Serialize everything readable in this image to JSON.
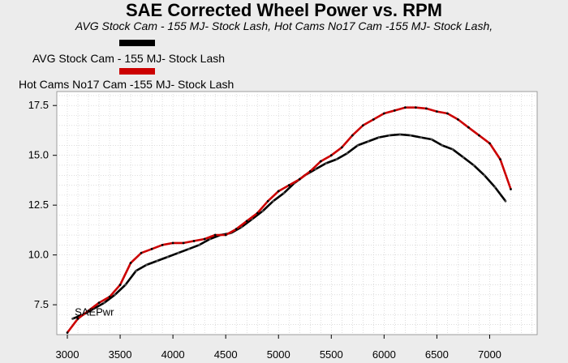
{
  "chart_data": {
    "type": "line",
    "title": "SAE Corrected Wheel Power vs. RPM",
    "subtitle": "AVG Stock Cam - 155 MJ- Stock Lash, Hot Cams No17 Cam -155 MJ- Stock Lash,",
    "annotation": "SAEPwr",
    "xlim": [
      2900,
      7450
    ],
    "ylim": [
      6.0,
      18.2
    ],
    "xticks": [
      3000,
      3500,
      4000,
      4500,
      5000,
      5500,
      6000,
      6500,
      7000
    ],
    "yticks": [
      7.5,
      10.0,
      12.5,
      15.0,
      17.5
    ],
    "grid": true,
    "legend_position": "top-left",
    "series": [
      {
        "name": "AVG Stock Cam - 155 MJ- Stock Lash",
        "color": "#000000",
        "x": [
          3050,
          3150,
          3250,
          3350,
          3450,
          3550,
          3650,
          3750,
          3850,
          3950,
          4050,
          4150,
          4250,
          4350,
          4450,
          4550,
          4650,
          4750,
          4850,
          4950,
          5050,
          5150,
          5250,
          5350,
          5450,
          5550,
          5650,
          5750,
          5850,
          5950,
          6050,
          6150,
          6250,
          6350,
          6450,
          6550,
          6650,
          6750,
          6850,
          6950,
          7050,
          7150
        ],
        "y": [
          6.8,
          7.0,
          7.3,
          7.6,
          8.0,
          8.5,
          9.2,
          9.5,
          9.7,
          9.9,
          10.1,
          10.3,
          10.5,
          10.8,
          11.0,
          11.1,
          11.4,
          11.8,
          12.2,
          12.7,
          13.1,
          13.6,
          14.0,
          14.3,
          14.6,
          14.8,
          15.1,
          15.5,
          15.7,
          15.9,
          16.0,
          16.05,
          16.0,
          15.9,
          15.8,
          15.5,
          15.3,
          14.9,
          14.5,
          14.0,
          13.4,
          12.7
        ]
      },
      {
        "name": "Hot Cams No17 Cam -155 MJ- Stock Lash",
        "color": "#cc0000",
        "x": [
          3000,
          3100,
          3200,
          3300,
          3400,
          3500,
          3600,
          3700,
          3800,
          3900,
          4000,
          4100,
          4200,
          4300,
          4400,
          4500,
          4600,
          4700,
          4800,
          4900,
          5000,
          5100,
          5200,
          5300,
          5400,
          5500,
          5600,
          5700,
          5800,
          5900,
          6000,
          6100,
          6200,
          6300,
          6400,
          6500,
          6600,
          6700,
          6800,
          6900,
          7000,
          7100,
          7200
        ],
        "y": [
          6.1,
          6.8,
          7.2,
          7.6,
          7.9,
          8.5,
          9.6,
          10.1,
          10.3,
          10.5,
          10.6,
          10.6,
          10.7,
          10.8,
          11.0,
          11.0,
          11.3,
          11.7,
          12.1,
          12.7,
          13.2,
          13.5,
          13.8,
          14.2,
          14.7,
          15.0,
          15.4,
          16.0,
          16.5,
          16.8,
          17.1,
          17.25,
          17.4,
          17.4,
          17.35,
          17.2,
          17.1,
          16.8,
          16.4,
          16.0,
          15.6,
          14.8,
          13.3
        ]
      }
    ]
  }
}
